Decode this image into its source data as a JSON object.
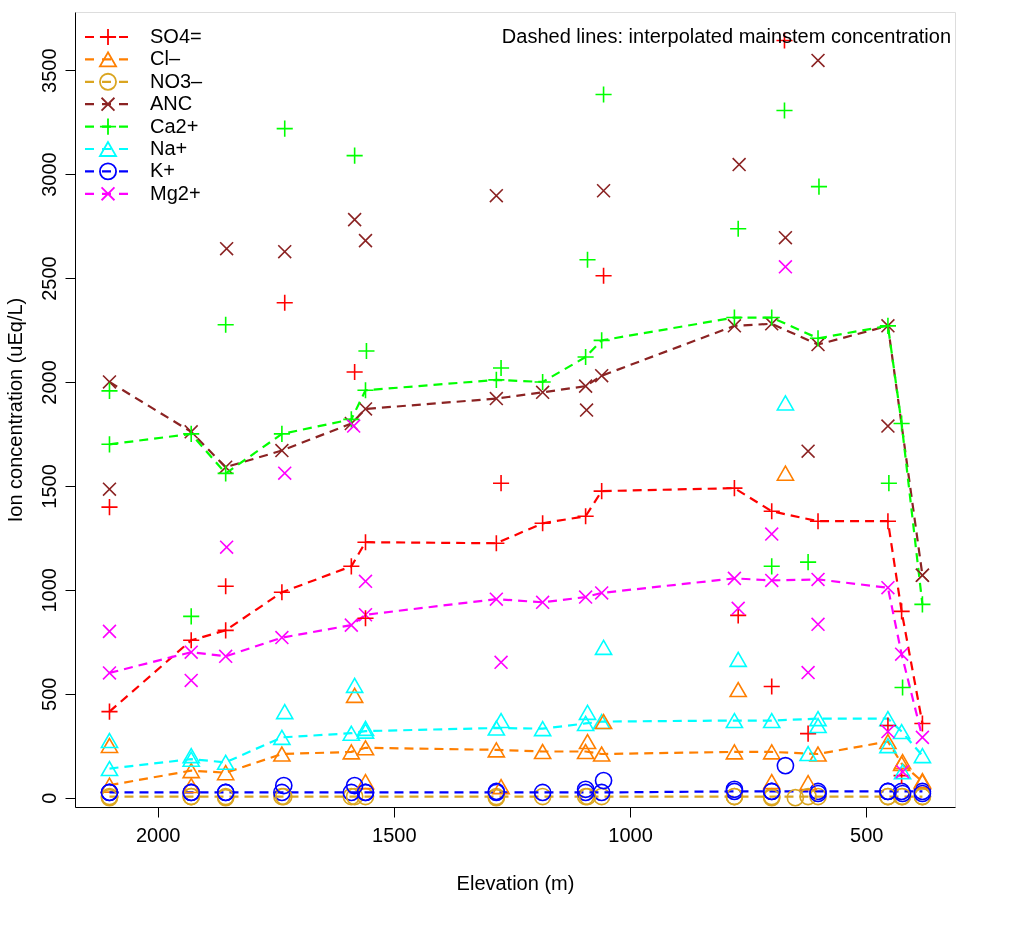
{
  "chart_data": {
    "type": "line",
    "xlabel": "Elevation (m)",
    "ylabel": "Ion concentration (uEq/L)",
    "annotations": [
      "Dashed lines: interpolated mainstem concentration"
    ],
    "xlim": [
      2175,
      312
    ],
    "ylim": [
      -45,
      3780
    ],
    "xticks": [
      2000,
      1500,
      1000,
      500
    ],
    "yticks": [
      0,
      500,
      1000,
      1500,
      2000,
      2500,
      3000,
      3500
    ],
    "grid": false,
    "legend": "top left",
    "series": [
      {
        "name": "SO4=",
        "color": "#ff0000",
        "marker": "cross",
        "line_style": "dashed",
        "x": [
          2102,
          1929,
          1856,
          1737,
          1590,
          1560,
          1283,
          1185,
          1094,
          1060,
          779,
          700,
          602,
          454,
          425,
          381
        ],
        "values": [
          414,
          757,
          805,
          988,
          1113,
          1229,
          1224,
          1320,
          1354,
          1475,
          1489,
          1378,
          1330,
          1330,
          896,
          357
        ]
      },
      {
        "name": "Cl–",
        "color": "#ff7f00",
        "marker": "triangle",
        "line_style": "dashed",
        "x": [
          2102,
          1929,
          1856,
          1737,
          1590,
          1560,
          1283,
          1185,
          1094,
          1060,
          779,
          700,
          602,
          454,
          425,
          381
        ],
        "values": [
          60,
          130,
          120,
          210,
          220,
          240,
          230,
          222,
          222,
          210,
          220,
          220,
          210,
          270,
          164,
          77
        ]
      },
      {
        "name": "NO3–",
        "color": "#daa520",
        "marker": "circle",
        "line_style": "dashed",
        "x": [
          2102,
          1929,
          1856,
          1737,
          1590,
          1560,
          1283,
          1185,
          1094,
          1060,
          779,
          700,
          602,
          454,
          425,
          381
        ],
        "values": [
          5,
          5,
          5,
          5,
          5,
          5,
          5,
          5,
          5,
          5,
          5,
          5,
          5,
          5,
          5,
          5
        ]
      },
      {
        "name": "ANC",
        "color": "#8b2323",
        "marker": "x",
        "line_style": "dashed",
        "x": [
          2102,
          1929,
          1856,
          1737,
          1590,
          1560,
          1283,
          1185,
          1094,
          1060,
          779,
          700,
          602,
          454,
          381
        ],
        "values": [
          2000,
          1760,
          1590,
          1670,
          1800,
          1870,
          1920,
          1950,
          1980,
          2030,
          2270,
          2280,
          2180,
          2270,
          1070
        ]
      },
      {
        "name": "Ca2+",
        "color": "#00ff00",
        "marker": "cross",
        "line_style": "dashed",
        "x": [
          2102,
          1929,
          1856,
          1737,
          1590,
          1560,
          1283,
          1185,
          1094,
          1060,
          779,
          700,
          602,
          454,
          425,
          381
        ],
        "values": [
          1700,
          1750,
          1560,
          1750,
          1820,
          1960,
          2010,
          2000,
          2120,
          2200,
          2310,
          2310,
          2210,
          2270,
          1800,
          930
        ]
      },
      {
        "name": "Na+",
        "color": "#00ffff",
        "marker": "triangle",
        "line_style": "dashed",
        "x": [
          2102,
          1929,
          1856,
          1737,
          1590,
          1560,
          1283,
          1185,
          1094,
          1060,
          779,
          700,
          602,
          454,
          425,
          381
        ],
        "values": [
          140,
          185,
          170,
          290,
          310,
          320,
          335,
          332,
          357,
          366,
          371,
          371,
          380,
          380,
          318,
          202
        ]
      },
      {
        "name": "K+",
        "color": "#0000ff",
        "marker": "circle",
        "line_style": "dashed",
        "x": [
          2102,
          1929,
          1856,
          1737,
          1590,
          1560,
          1283,
          1185,
          1094,
          1060,
          779,
          700,
          602,
          454,
          425,
          381
        ],
        "values": [
          25,
          25,
          25,
          25,
          25,
          25,
          25,
          25,
          25,
          25,
          30,
          30,
          30,
          30,
          30,
          30
        ]
      },
      {
        "name": "Mg2+",
        "color": "#ff00ff",
        "marker": "x",
        "line_style": "dashed",
        "x": [
          2102,
          1929,
          1856,
          1737,
          1590,
          1560,
          1283,
          1185,
          1094,
          1060,
          779,
          700,
          602,
          454,
          425,
          381
        ],
        "values": [
          600,
          700,
          680,
          770,
          830,
          880,
          955,
          940,
          965,
          985,
          1055,
          1045,
          1050,
          1010,
          690,
          290
        ]
      },
      {
        "color": "#ff0000",
        "type": "scatter",
        "marker": "cross",
        "x": [
          1731,
          1583,
          1056,
          1273,
          2102,
          1856,
          1560,
          673,
          771,
          700,
          623,
          425,
          454
        ],
        "values": [
          2381,
          2048,
          2511,
          1513,
          1398,
          1017,
          863,
          3643,
          877,
          535,
          308,
          106,
          347
        ]
      },
      {
        "color": "#ff7f00",
        "type": "scatter",
        "marker": "triangle",
        "x": [
          2102,
          1583,
          1929,
          1560,
          1273,
          671,
          771,
          1090,
          1056,
          423,
          381,
          700,
          623
        ],
        "values": [
          251,
          492,
          58,
          77,
          53,
          1561,
          520,
          270,
          366,
          173,
          82,
          77,
          72
        ]
      },
      {
        "color": "#daa520",
        "type": "scatter",
        "marker": "circle",
        "x": [
          2102,
          1929,
          1856,
          1733,
          1583,
          1283,
          1090,
          779,
          700,
          650,
          623,
          454,
          423,
          381
        ],
        "values": [
          0,
          5,
          0,
          5,
          5,
          0,
          5,
          5,
          0,
          0,
          5,
          5,
          5,
          5
        ]
      },
      {
        "color": "#8b2323",
        "type": "scatter",
        "marker": "x",
        "x": [
          1854,
          1731,
          1583,
          1560,
          1283,
          602,
          1056,
          769,
          671,
          1092,
          454,
          623,
          2102,
          381
        ],
        "values": [
          2641,
          2627,
          2781,
          2680,
          2896,
          3547,
          2920,
          3046,
          2694,
          1865,
          1788,
          1667,
          1484,
          1070
        ]
      },
      {
        "color": "#00ff00",
        "type": "scatter",
        "marker": "cross",
        "x": [
          1731,
          1583,
          1856,
          1558,
          2102,
          1273,
          1056,
          673,
          600,
          771,
          1090,
          1929,
          452,
          700,
          623,
          423
        ],
        "values": [
          3219,
          3089,
          2275,
          2149,
          1957,
          2067,
          3383,
          3306,
          2940,
          2737,
          2588,
          872,
          1513,
          1113,
          1133,
          530
        ]
      },
      {
        "color": "#00ffff",
        "type": "scatter",
        "marker": "triangle",
        "x": [
          2102,
          1929,
          1731,
          1583,
          1560,
          1273,
          1056,
          771,
          671,
          1090,
          623,
          602,
          454,
          423
        ],
        "values": [
          275,
          202,
          414,
          540,
          333,
          371,
          723,
          665,
          1899,
          410,
          212,
          347,
          250,
          125
        ]
      },
      {
        "color": "#0000ff",
        "type": "scatter",
        "marker": "circle",
        "x": [
          2102,
          1929,
          1856,
          1733,
          1583,
          1560,
          1283,
          1094,
          1056,
          779,
          700,
          671,
          602,
          454,
          423,
          381
        ],
        "values": [
          25,
          25,
          25,
          58,
          58,
          25,
          30,
          40,
          82,
          40,
          30,
          154,
          20,
          30,
          20,
          20
        ]
      },
      {
        "color": "#ff00ff",
        "type": "scatter",
        "marker": "x",
        "x": [
          2102,
          1929,
          1854,
          1731,
          1560,
          1273,
          1585,
          671,
          602,
          623,
          771,
          700,
          423,
          454
        ],
        "values": [
          800,
          564,
          1205,
          1561,
          1041,
          651,
          1788,
          2554,
          834,
          602,
          911,
          1268,
          125,
          318
        ]
      }
    ]
  }
}
